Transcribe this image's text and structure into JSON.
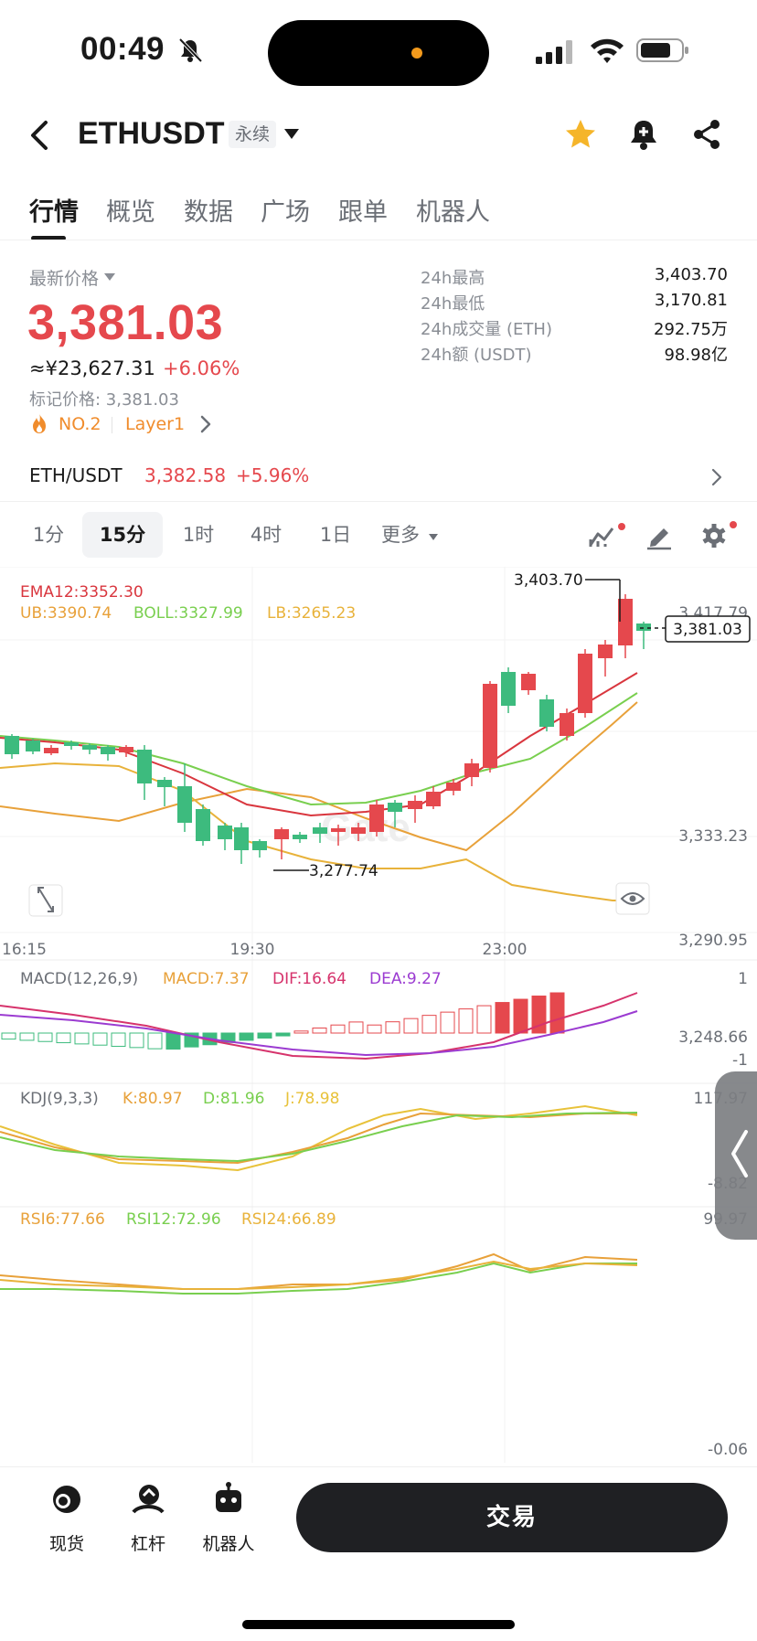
{
  "status_bar": {
    "time": "00:49"
  },
  "header": {
    "symbol": "ETHUSDT",
    "contract_type": "永续"
  },
  "tabs": [
    {
      "label": "行情",
      "active": true
    },
    {
      "label": "概览"
    },
    {
      "label": "数据"
    },
    {
      "label": "广场"
    },
    {
      "label": "跟单"
    },
    {
      "label": "机器人"
    }
  ],
  "price_panel": {
    "label": "最新价格",
    "last_price": "3,381.03",
    "cny_price": "≈¥23,627.31",
    "change_pct": "+6.06%",
    "mark_price": "标记价格: 3,381.03",
    "rank": "NO.2",
    "tag": "Layer1",
    "stats": [
      {
        "label": "24h最高",
        "value": "3,403.70"
      },
      {
        "label": "24h最低",
        "value": "3,170.81"
      },
      {
        "label": "24h成交量 (ETH)",
        "value": "292.75万"
      },
      {
        "label": "24h额 (USDT)",
        "value": "98.98亿"
      }
    ]
  },
  "spot": {
    "pair": "ETH/USDT",
    "price": "3,382.58",
    "change": "+5.96%"
  },
  "intervals": [
    {
      "label": "1分"
    },
    {
      "label": "15分",
      "active": true
    },
    {
      "label": "1时"
    },
    {
      "label": "4时"
    },
    {
      "label": "1日"
    },
    {
      "label": "更多"
    }
  ],
  "colors": {
    "up": "#e5484d",
    "down": "#3dbb7e",
    "ema": "#d9363e",
    "ub": "#e8a13a",
    "boll": "#79cf4f",
    "lb": "#e8b23a",
    "macd": "#e8a13a",
    "dif": "#d6336c",
    "dea": "#9b3bd1",
    "k": "#e8a13a",
    "d": "#79cf4f",
    "j": "#e8c23a"
  },
  "chart": {
    "indicator_labels": {
      "ema": "EMA12:3352.30",
      "ub": "UB:3390.74",
      "boll": "BOLL:3327.99",
      "lb": "LB:3265.23",
      "macd_name": "MACD(12,26,9)",
      "macd": "MACD:7.37",
      "dif": "DIF:16.64",
      "dea": "DEA:9.27",
      "kdj_name": "KDJ(9,3,3)",
      "k": "K:80.97",
      "d": "D:81.96",
      "j": "J:78.98",
      "rsi6": "RSI6:77.66",
      "rsi12": "RSI12:72.96",
      "rsi24": "RSI24:66.89"
    },
    "price_axis": [
      "3,417.79",
      "3,333.23",
      "3,290.95",
      "3,248.66"
    ],
    "time_axis": [
      "16:15",
      "19:30",
      "23:00"
    ],
    "current_price": "3,381.03",
    "high_marker": "3,403.70",
    "low_marker": "3,277.74",
    "macd_axis": [
      "1",
      "-1"
    ],
    "kdj_axis": [
      "117.97",
      "-8.82"
    ],
    "rsi_axis": [
      "99.97",
      "-0.06"
    ],
    "watermark": "Gate"
  },
  "bottom_nav": [
    {
      "label": "现货",
      "icon": "spot-coin-icon"
    },
    {
      "label": "杠杆",
      "icon": "leverage-icon"
    },
    {
      "label": "机器人",
      "icon": "robot-icon"
    }
  ],
  "trade_button": "交易"
}
